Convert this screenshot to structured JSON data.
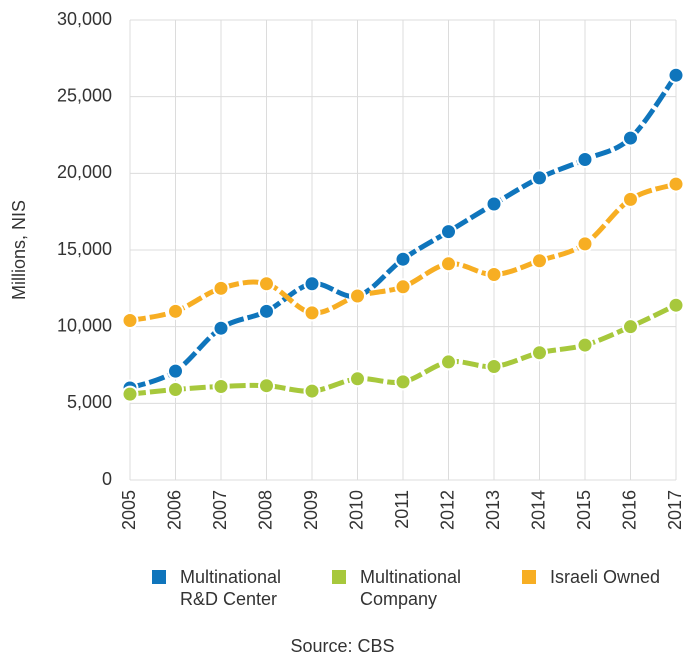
{
  "chart_data": {
    "type": "line",
    "y_label": "Millions, NIS",
    "source": "Source: CBS",
    "categories": [
      "2005",
      "2006",
      "2007",
      "2008",
      "2009",
      "2010",
      "2011",
      "2012",
      "2013",
      "2014",
      "2015",
      "2016",
      "2017"
    ],
    "series": [
      {
        "name": "Multinational R&D Center",
        "color": "#0f75bc",
        "values": [
          6000,
          7100,
          9900,
          11000,
          12800,
          12000,
          14400,
          16200,
          18000,
          19700,
          20900,
          22300,
          26400
        ]
      },
      {
        "name": "Multinational Company",
        "color": "#a7c83c",
        "values": [
          5600,
          5900,
          6100,
          6150,
          5800,
          6600,
          6400,
          7700,
          7400,
          8300,
          8800,
          10000,
          11400
        ]
      },
      {
        "name": "Israeli Owned",
        "color": "#f7ae23",
        "values": [
          10400,
          11000,
          12500,
          12800,
          10900,
          12000,
          12600,
          14100,
          13400,
          14300,
          15400,
          18300,
          19300
        ]
      }
    ],
    "ylim": [
      0,
      30000
    ],
    "yticks": [
      0,
      {
        "value": 5000,
        "label": "5,000"
      },
      {
        "value": 10000,
        "label": "10,000"
      },
      {
        "value": 15000,
        "label": "15,000"
      },
      {
        "value": 20000,
        "label": "20,000"
      },
      {
        "value": 25000,
        "label": "25,000"
      },
      {
        "value": 30000,
        "label": "30,000"
      }
    ],
    "grid": true
  }
}
